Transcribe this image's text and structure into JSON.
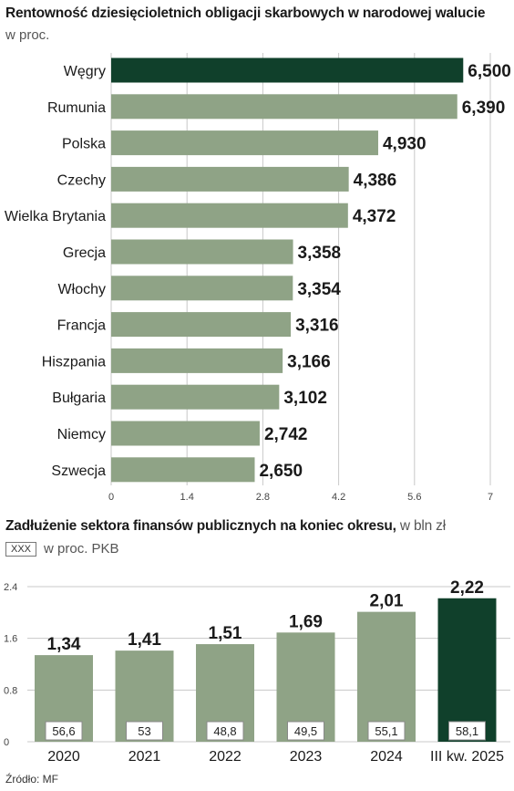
{
  "chart_data": [
    {
      "type": "bar",
      "orientation": "horizontal",
      "title": "Rentowność dziesięcioletnich obligacji skarbowych w narodowej walucie",
      "subtitle": "w proc.",
      "categories": [
        "Węgry",
        "Rumunia",
        "Polska",
        "Czechy",
        "Wielka Brytania",
        "Grecja",
        "Włochy",
        "Francja",
        "Hiszpania",
        "Bułgaria",
        "Niemcy",
        "Szwecja"
      ],
      "values": [
        6.5,
        6.39,
        4.93,
        4.386,
        4.372,
        3.358,
        3.354,
        3.316,
        3.166,
        3.102,
        2.742,
        2.65
      ],
      "value_labels": [
        "6,500",
        "6,390",
        "4,930",
        "4,386",
        "4,372",
        "3,358",
        "3,354",
        "3,316",
        "3,166",
        "3,102",
        "2,742",
        "2,650"
      ],
      "highlight": "Węgry",
      "xlim": [
        0,
        7
      ],
      "ticks": [
        0,
        1.4,
        2.8,
        4.2,
        5.6,
        7
      ],
      "tick_labels": [
        "0",
        "1.4",
        "2.8",
        "4.2",
        "5.6",
        "7"
      ],
      "grid": true
    },
    {
      "type": "bar",
      "title": "Zadłużenie sektora finansów publicznych na koniec okresu,",
      "title_unit": "w bln zł",
      "legend_box": "XXX",
      "legend_text": "w proc. PKB",
      "categories": [
        "2020",
        "2021",
        "2022",
        "2023",
        "2024",
        "III kw. 2025"
      ],
      "values": [
        1.34,
        1.41,
        1.51,
        1.69,
        2.01,
        2.22
      ],
      "value_labels": [
        "1,34",
        "1,41",
        "1,51",
        "1,69",
        "2,01",
        "2,22"
      ],
      "secondary_labels": [
        "56,6",
        "53",
        "48,8",
        "49,5",
        "55,1",
        "58,1"
      ],
      "highlight": "III kw. 2025",
      "ylim": [
        0,
        2.4
      ],
      "ticks": [
        0,
        0.8,
        1.6,
        2.4
      ],
      "tick_labels": [
        "0",
        "0.8",
        "1.6",
        "2.4"
      ],
      "grid": true,
      "legend": "top-left"
    }
  ],
  "source": "Źródło: MF",
  "colors": {
    "bar": "#8fa386",
    "highlight": "#10402b",
    "grid": "#c8c8c8",
    "text": "#1a1a1a"
  }
}
